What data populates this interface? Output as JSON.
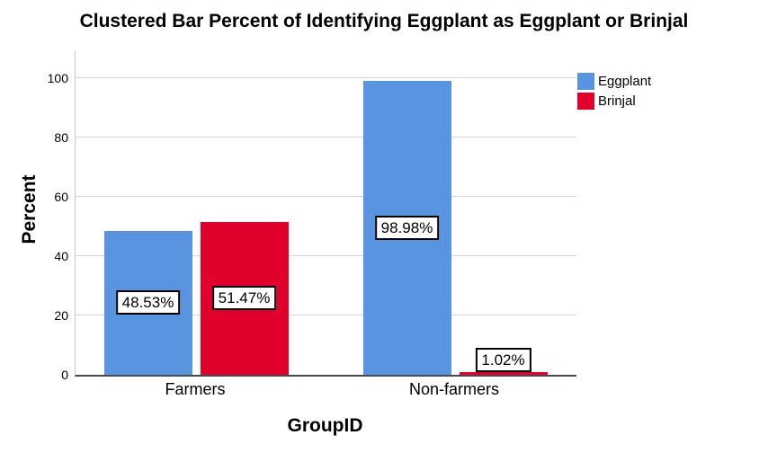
{
  "title": "Clustered Bar Percent of Identifying Eggplant as Eggplant or Brinjal",
  "chart_data": {
    "type": "bar",
    "clustered": true,
    "title": "Clustered Bar Percent of Identifying Eggplant as Eggplant or Brinjal",
    "xlabel": "GroupID",
    "ylabel": "Percent",
    "categories": [
      "Farmers",
      "Non-farmers"
    ],
    "series": [
      {
        "name": "Eggplant",
        "color": "#5894E0",
        "values": [
          48.53,
          98.98
        ],
        "labels": [
          "48.53%",
          "98.98%"
        ]
      },
      {
        "name": "Brinjal",
        "color": "#E0002B",
        "values": [
          51.47,
          1.02
        ],
        "labels": [
          "51.47%",
          "1.02%"
        ]
      }
    ],
    "ylim": [
      0,
      100
    ],
    "yticks": [
      0,
      20,
      40,
      60,
      80,
      100
    ],
    "grid": "horizontal",
    "legend_position": "top-right",
    "colors": {
      "gridline": "#d4d4d4",
      "y_axis_line": "#c8c8c8",
      "x_axis_line": "#4a4a4a",
      "data_label_bg": "#ffffff",
      "data_label_border": "#000000",
      "text": "#000000"
    }
  }
}
